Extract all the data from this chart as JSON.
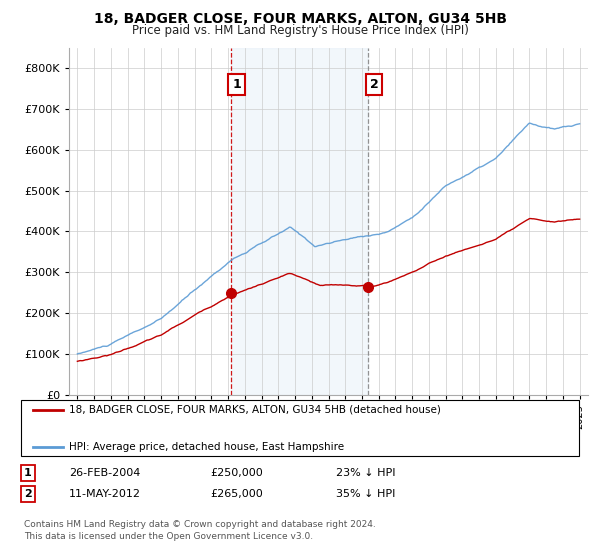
{
  "title1": "18, BADGER CLOSE, FOUR MARKS, ALTON, GU34 5HB",
  "title2": "Price paid vs. HM Land Registry's House Price Index (HPI)",
  "hpi_color": "#5b9bd5",
  "price_color": "#c00000",
  "bg_color": "#ffffff",
  "highlight_color": "#dce9f5",
  "transaction1": {
    "label": "1",
    "date": "26-FEB-2004",
    "price": "£250,000",
    "pct": "23% ↓ HPI",
    "x": 2004.15
  },
  "transaction2": {
    "label": "2",
    "date": "11-MAY-2012",
    "price": "£265,000",
    "pct": "35% ↓ HPI",
    "x": 2012.37
  },
  "legend_line1": "18, BADGER CLOSE, FOUR MARKS, ALTON, GU34 5HB (detached house)",
  "legend_line2": "HPI: Average price, detached house, East Hampshire",
  "footer1": "Contains HM Land Registry data © Crown copyright and database right 2024.",
  "footer2": "This data is licensed under the Open Government Licence v3.0.",
  "ylim": [
    0,
    850000
  ],
  "xlim_start": 1994.5,
  "xlim_end": 2025.5,
  "t1_y": 250000,
  "t2_y": 265000
}
